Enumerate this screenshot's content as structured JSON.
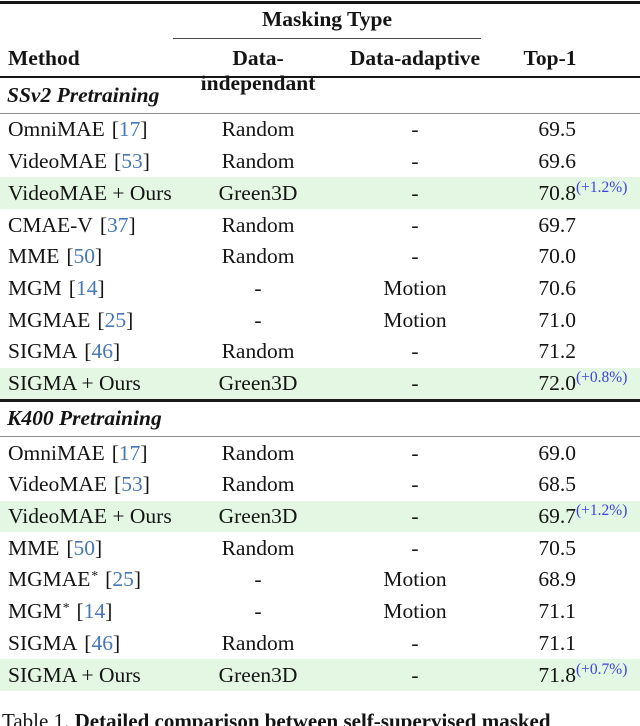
{
  "colors": {
    "highlight": "#e3f7e3",
    "citation": "#4678b8",
    "gain": "#3f3fe3"
  },
  "header": {
    "masking_type": "Masking Type",
    "method": "Method",
    "independant": "Data-independant",
    "adaptive": "Data-adaptive",
    "top1": "Top-1"
  },
  "sections": [
    {
      "title": "SSv2 Pretraining",
      "rows": [
        {
          "method": "OmniMAE",
          "cite": "17",
          "independant": "Random",
          "adaptive": "-",
          "top1": "69.5",
          "highlight": false
        },
        {
          "method": "VideoMAE",
          "cite": "53",
          "independant": "Random",
          "adaptive": "-",
          "top1": "69.6",
          "highlight": false
        },
        {
          "method": "VideoMAE + Ours",
          "independant": "Green3D",
          "adaptive": "-",
          "top1": "70.8",
          "gain": "(+1.2%)",
          "highlight": true
        },
        {
          "method": "CMAE-V",
          "cite": "37",
          "independant": "Random",
          "adaptive": "-",
          "top1": "69.7",
          "highlight": false
        },
        {
          "method": "MME",
          "cite": "50",
          "independant": "Random",
          "adaptive": "-",
          "top1": "70.0",
          "highlight": false
        },
        {
          "method": "MGM",
          "cite": "14",
          "independant": "-",
          "adaptive": "Motion",
          "top1": "70.6",
          "highlight": false
        },
        {
          "method": "MGMAE",
          "cite": "25",
          "independant": "-",
          "adaptive": "Motion",
          "top1": "71.0",
          "highlight": false
        },
        {
          "method": "SIGMA",
          "cite": "46",
          "independant": "Random",
          "adaptive": "-",
          "top1": "71.2",
          "highlight": false
        },
        {
          "method": "SIGMA + Ours",
          "independant": "Green3D",
          "adaptive": "-",
          "top1": "72.0",
          "gain": "(+0.8%)",
          "highlight": true
        }
      ]
    },
    {
      "title": "K400 Pretraining",
      "rows": [
        {
          "method": "OmniMAE",
          "cite": "17",
          "independant": "Random",
          "adaptive": "-",
          "top1": "69.0",
          "highlight": false
        },
        {
          "method": "VideoMAE",
          "cite": "53",
          "independant": "Random",
          "adaptive": "-",
          "top1": "68.5",
          "highlight": false
        },
        {
          "method": "VideoMAE + Ours",
          "independant": "Green3D",
          "adaptive": "-",
          "top1": "69.7",
          "gain": "(+1.2%)",
          "highlight": true
        },
        {
          "method": "MME",
          "cite": "50",
          "independant": "Random",
          "adaptive": "-",
          "top1": "70.5",
          "highlight": false
        },
        {
          "method": "MGMAE",
          "star": "*",
          "cite": "25",
          "independant": "-",
          "adaptive": "Motion",
          "top1": "68.9",
          "highlight": false
        },
        {
          "method": "MGM",
          "star": "*",
          "cite": "14",
          "independant": "-",
          "adaptive": "Motion",
          "top1": "71.1",
          "highlight": false
        },
        {
          "method": "SIGMA",
          "cite": "46",
          "independant": "Random",
          "adaptive": "-",
          "top1": "71.1",
          "highlight": false
        },
        {
          "method": "SIGMA + Ours",
          "independant": "Green3D",
          "adaptive": "-",
          "top1": "71.8",
          "gain": "(+0.7%)",
          "highlight": true
        }
      ]
    }
  ],
  "caption": {
    "label": "Table 1.",
    "text": "Detailed comparison between self-supervised masked"
  }
}
